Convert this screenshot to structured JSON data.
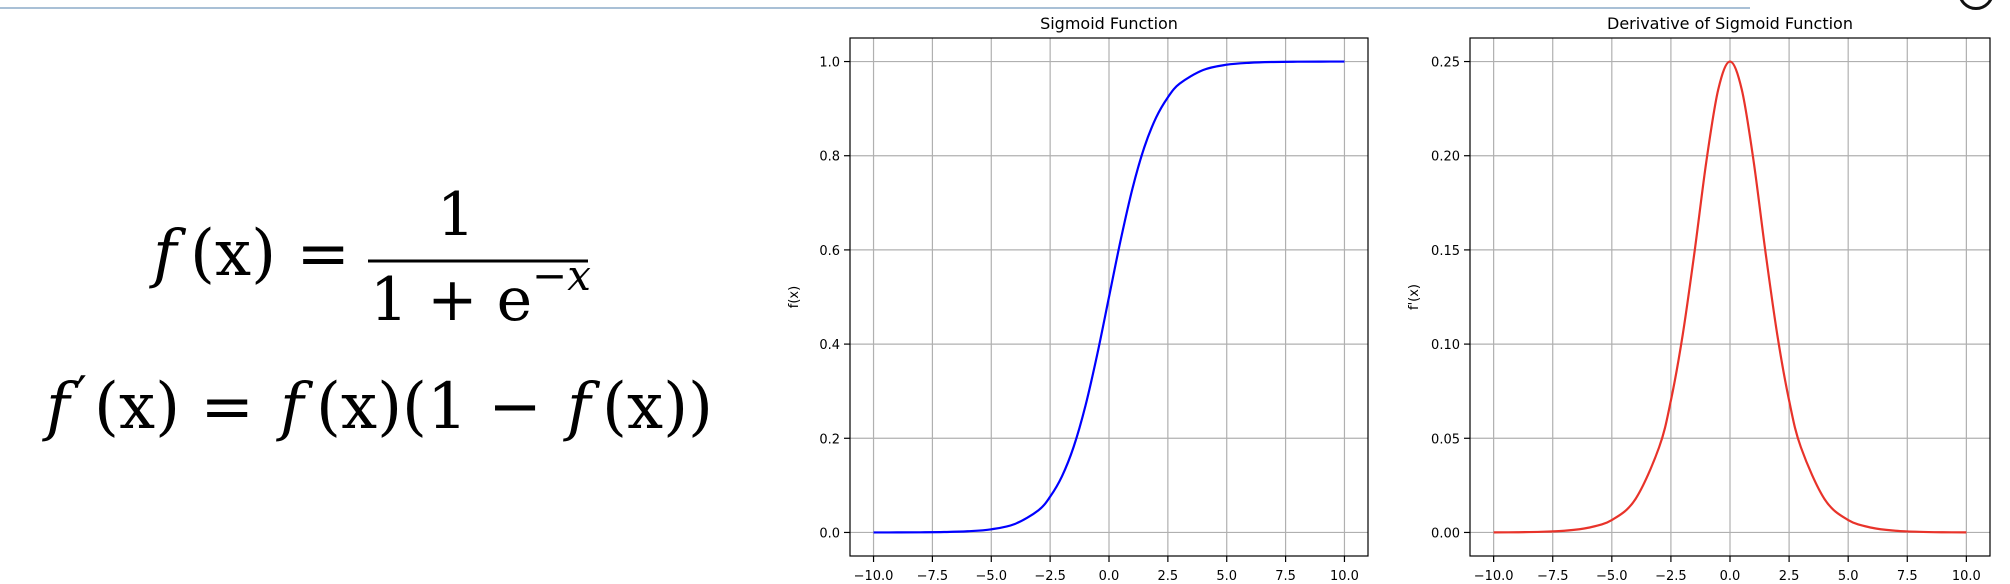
{
  "formulas": {
    "f_lhs_f": "f",
    "f_lhs_rest": "(x) =",
    "f_numerator": "1",
    "f_den_base": "1 + e",
    "f_den_exp": "−x",
    "d_lhs_f": "f",
    "d_prime": "′",
    "d_lhs_rest": "(x) =",
    "d_rhs_f1": "f",
    "d_rhs_mid": "(x)(1 −",
    "d_rhs_f2": "f",
    "d_rhs_end": "(x))"
  },
  "chart_data": [
    {
      "type": "line",
      "title": "Sigmoid Function",
      "xlabel": "",
      "ylabel": "f(x)",
      "xlim": [
        -11,
        11
      ],
      "ylim": [
        -0.05,
        1.05
      ],
      "xticks": [
        -10.0,
        -7.5,
        -5.0,
        -2.5,
        0.0,
        2.5,
        5.0,
        7.5,
        10.0
      ],
      "xtick_labels": [
        "−10.0",
        "−7.5",
        "−5.0",
        "−2.5",
        "0.0",
        "2.5",
        "5.0",
        "7.5",
        "10.0"
      ],
      "yticks": [
        0.0,
        0.2,
        0.4,
        0.6,
        0.8,
        1.0
      ],
      "ytick_labels": [
        "0.0",
        "0.2",
        "0.4",
        "0.6",
        "0.8",
        "1.0"
      ],
      "grid": true,
      "color": "#0000ff",
      "series": [
        {
          "x": [
            -10,
            -9,
            -8,
            -7,
            -6,
            -5,
            -4,
            -3,
            -2.5,
            -2,
            -1.5,
            -1,
            -0.5,
            0,
            0.5,
            1,
            1.5,
            2,
            2.5,
            3,
            4,
            5,
            6,
            7,
            8,
            9,
            10
          ],
          "values": [
            5e-05,
            0.00012,
            0.00034,
            0.00091,
            0.0025,
            0.0067,
            0.018,
            0.047,
            0.076,
            0.119,
            0.182,
            0.269,
            0.378,
            0.5,
            0.622,
            0.731,
            0.818,
            0.881,
            0.924,
            0.953,
            0.982,
            0.9933,
            0.9975,
            0.9991,
            0.99966,
            0.99988,
            0.99995
          ]
        }
      ]
    },
    {
      "type": "line",
      "title": "Derivative of Sigmoid Function",
      "xlabel": "",
      "ylabel": "f'(x)",
      "xlim": [
        -11,
        11
      ],
      "ylim": [
        -0.0125,
        0.2625
      ],
      "xticks": [
        -10.0,
        -7.5,
        -5.0,
        -2.5,
        0.0,
        2.5,
        5.0,
        7.5,
        10.0
      ],
      "xtick_labels": [
        "−10.0",
        "−7.5",
        "−5.0",
        "−2.5",
        "0.0",
        "2.5",
        "5.0",
        "7.5",
        "10.0"
      ],
      "yticks": [
        0.0,
        0.05,
        0.1,
        0.15,
        0.2,
        0.25
      ],
      "ytick_labels": [
        "0.00",
        "0.05",
        "0.10",
        "0.15",
        "0.20",
        "0.25"
      ],
      "grid": true,
      "color": "#e8332a",
      "series": [
        {
          "x": [
            -10,
            -9,
            -8,
            -7,
            -6,
            -5,
            -4,
            -3,
            -2.5,
            -2,
            -1.5,
            -1,
            -0.5,
            0,
            0.5,
            1,
            1.5,
            2,
            2.5,
            3,
            4,
            5,
            6,
            7,
            8,
            9,
            10
          ],
          "values": [
            5e-05,
            0.00012,
            0.00034,
            0.00091,
            0.0025,
            0.0066,
            0.0177,
            0.0452,
            0.0701,
            0.105,
            0.149,
            0.197,
            0.235,
            0.25,
            0.235,
            0.197,
            0.149,
            0.105,
            0.0701,
            0.0452,
            0.0177,
            0.0066,
            0.0025,
            0.00091,
            0.00034,
            0.00012,
            5e-05
          ]
        }
      ]
    }
  ]
}
